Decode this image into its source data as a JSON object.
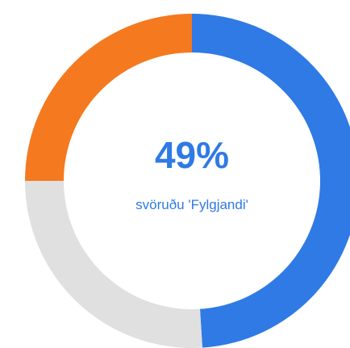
{
  "chart_data": {
    "type": "donut",
    "values": [
      49,
      26,
      25
    ],
    "colors": [
      "#2f7ae5",
      "#e0e0e0",
      "#f5791f"
    ],
    "annotations": [
      "49%",
      "svöruðu 'Fylgjandi'"
    ]
  }
}
